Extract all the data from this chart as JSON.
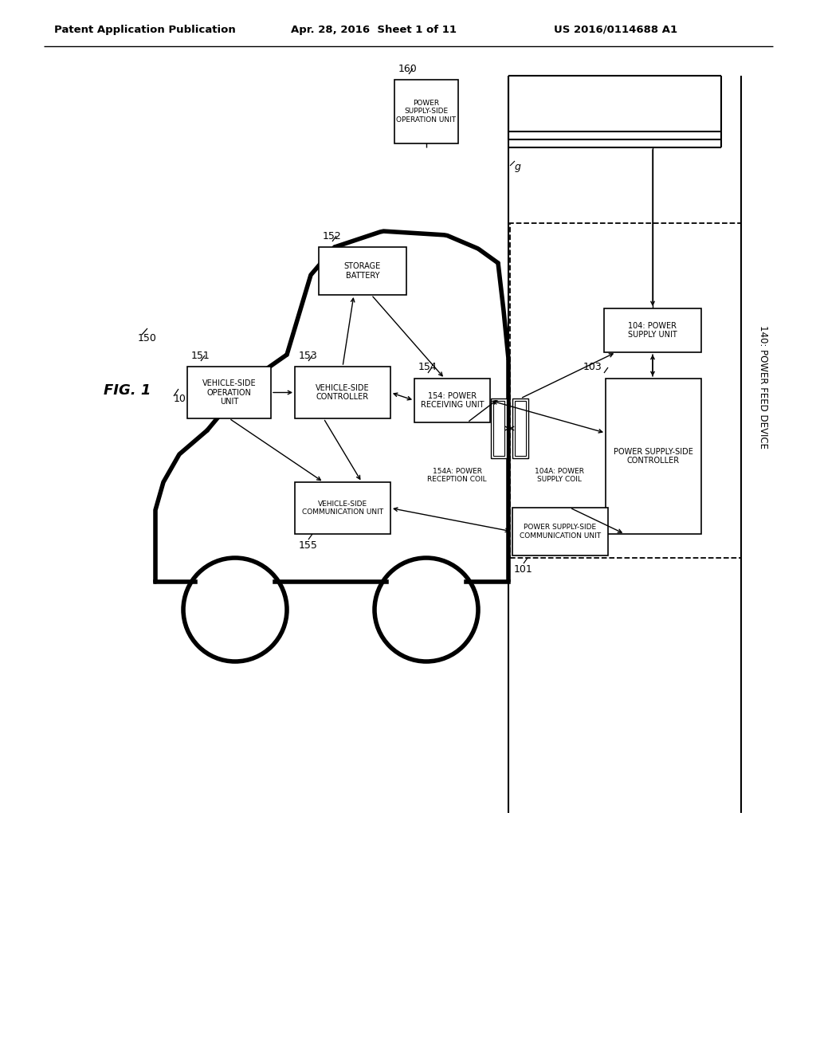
{
  "header_left": "Patent Application Publication",
  "header_mid": "Apr. 28, 2016  Sheet 1 of 11",
  "header_right": "US 2016/0114688 A1",
  "bg_color": "#ffffff",
  "line_color": "#000000"
}
